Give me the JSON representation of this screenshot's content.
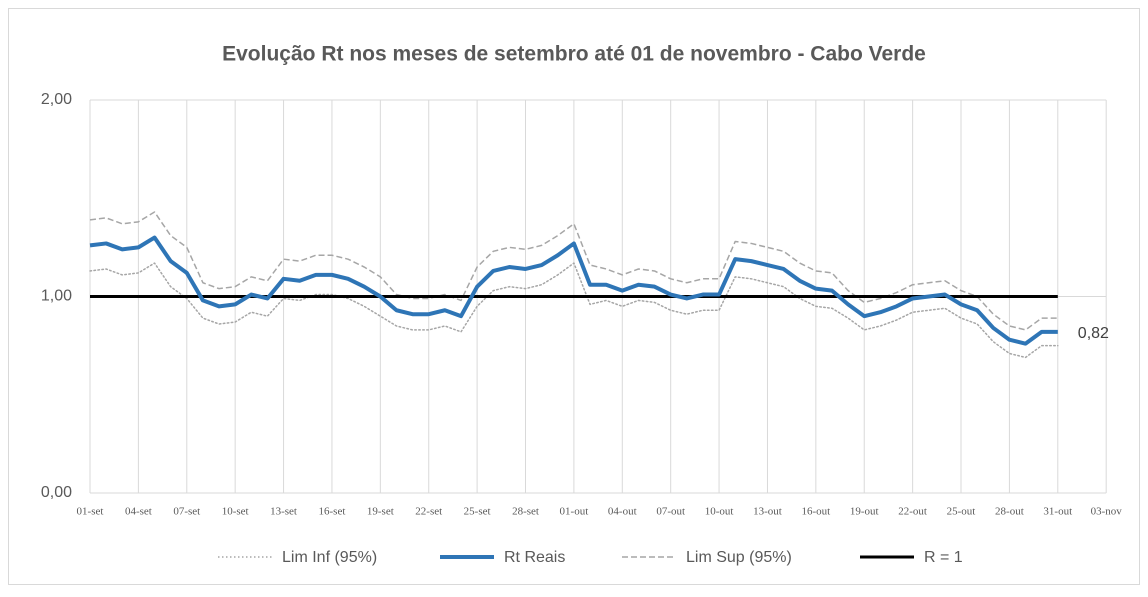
{
  "chart_data": {
    "type": "line",
    "title": "Evolução Rt nos meses de setembro até 01 de novembro  - Cabo Verde",
    "categories": [
      "01-set",
      null,
      null,
      "04-set",
      null,
      null,
      "07-set",
      null,
      null,
      "10-set",
      null,
      null,
      "13-set",
      null,
      null,
      "16-set",
      null,
      null,
      "19-set",
      null,
      null,
      "22-set",
      null,
      null,
      "25-set",
      null,
      null,
      "28-set",
      null,
      null,
      "01-out",
      null,
      null,
      "04-out",
      null,
      null,
      "07-out",
      null,
      null,
      "10-out",
      null,
      null,
      "13-out",
      null,
      null,
      "16-out",
      null,
      null,
      "19-out",
      null,
      null,
      "22-out",
      null,
      null,
      "25-out",
      null,
      null,
      "28-out",
      null,
      null,
      "31-out",
      null,
      null,
      "03-nov"
    ],
    "ylim": [
      0,
      2
    ],
    "yticks": [
      {
        "value": 0,
        "label": "0,00"
      },
      {
        "value": 1,
        "label": "1,00"
      },
      {
        "value": 2,
        "label": "2,00"
      }
    ],
    "grid": true,
    "legend": "bottom",
    "series": [
      {
        "name": "Lim Inf (95%)",
        "color": "#a6a6a6",
        "style": "dotted",
        "values": [
          1.13,
          1.14,
          1.11,
          1.12,
          1.17,
          1.05,
          0.99,
          0.89,
          0.86,
          0.87,
          0.92,
          0.9,
          0.99,
          0.98,
          1.01,
          1.01,
          0.99,
          0.95,
          0.9,
          0.85,
          0.83,
          0.83,
          0.85,
          0.82,
          0.95,
          1.03,
          1.05,
          1.04,
          1.06,
          1.11,
          1.17,
          0.96,
          0.98,
          0.95,
          0.98,
          0.97,
          0.93,
          0.91,
          0.93,
          0.93,
          1.1,
          1.09,
          1.07,
          1.05,
          0.99,
          0.95,
          0.94,
          0.89,
          0.83,
          0.85,
          0.88,
          0.92,
          0.93,
          0.94,
          0.89,
          0.86,
          0.77,
          0.71,
          0.69,
          0.75,
          0.75,
          null,
          null,
          null
        ]
      },
      {
        "name": "Rt Reais",
        "color": "#2e75b6",
        "style": "solid",
        "values": [
          1.26,
          1.27,
          1.24,
          1.25,
          1.3,
          1.18,
          1.12,
          0.98,
          0.95,
          0.96,
          1.01,
          0.99,
          1.09,
          1.08,
          1.11,
          1.11,
          1.09,
          1.05,
          1.0,
          0.93,
          0.91,
          0.91,
          0.93,
          0.9,
          1.05,
          1.13,
          1.15,
          1.14,
          1.16,
          1.21,
          1.27,
          1.06,
          1.06,
          1.03,
          1.06,
          1.05,
          1.01,
          0.99,
          1.01,
          1.01,
          1.19,
          1.18,
          1.16,
          1.14,
          1.08,
          1.04,
          1.03,
          0.96,
          0.9,
          0.92,
          0.95,
          0.99,
          1.0,
          1.01,
          0.96,
          0.93,
          0.84,
          0.78,
          0.76,
          0.82,
          0.82,
          null,
          null,
          null
        ],
        "value_labels": [
          null,
          null,
          null,
          null,
          null,
          null,
          null,
          null,
          null,
          null,
          null,
          null,
          null,
          null,
          null,
          null,
          null,
          null,
          null,
          null,
          null,
          null,
          null,
          null,
          null,
          null,
          null,
          null,
          null,
          null,
          null,
          null,
          null,
          null,
          null,
          null,
          null,
          null,
          null,
          null,
          null,
          null,
          null,
          null,
          null,
          null,
          null,
          null,
          null,
          null,
          null,
          null,
          null,
          null,
          null,
          null,
          null,
          null,
          null,
          null,
          "0,82",
          null,
          null,
          null
        ]
      },
      {
        "name": "Lim Sup (95%)",
        "color": "#a6a6a6",
        "style": "dashed",
        "values": [
          1.39,
          1.4,
          1.37,
          1.38,
          1.43,
          1.31,
          1.25,
          1.07,
          1.04,
          1.05,
          1.1,
          1.08,
          1.19,
          1.18,
          1.21,
          1.21,
          1.19,
          1.15,
          1.1,
          1.01,
          0.99,
          0.99,
          1.01,
          0.98,
          1.15,
          1.23,
          1.25,
          1.24,
          1.26,
          1.31,
          1.37,
          1.16,
          1.14,
          1.11,
          1.14,
          1.13,
          1.09,
          1.07,
          1.09,
          1.09,
          1.28,
          1.27,
          1.25,
          1.23,
          1.17,
          1.13,
          1.12,
          1.03,
          0.97,
          0.99,
          1.02,
          1.06,
          1.07,
          1.08,
          1.03,
          1.0,
          0.91,
          0.85,
          0.83,
          0.89,
          0.89,
          null,
          null,
          null
        ]
      },
      {
        "name": "R = 1",
        "color": "#000000",
        "style": "solid",
        "values": [
          1,
          1,
          1,
          1,
          1,
          1,
          1,
          1,
          1,
          1,
          1,
          1,
          1,
          1,
          1,
          1,
          1,
          1,
          1,
          1,
          1,
          1,
          1,
          1,
          1,
          1,
          1,
          1,
          1,
          1,
          1,
          1,
          1,
          1,
          1,
          1,
          1,
          1,
          1,
          1,
          1,
          1,
          1,
          1,
          1,
          1,
          1,
          1,
          1,
          1,
          1,
          1,
          1,
          1,
          1,
          1,
          1,
          1,
          1,
          1,
          1,
          null,
          null,
          null
        ]
      }
    ]
  }
}
